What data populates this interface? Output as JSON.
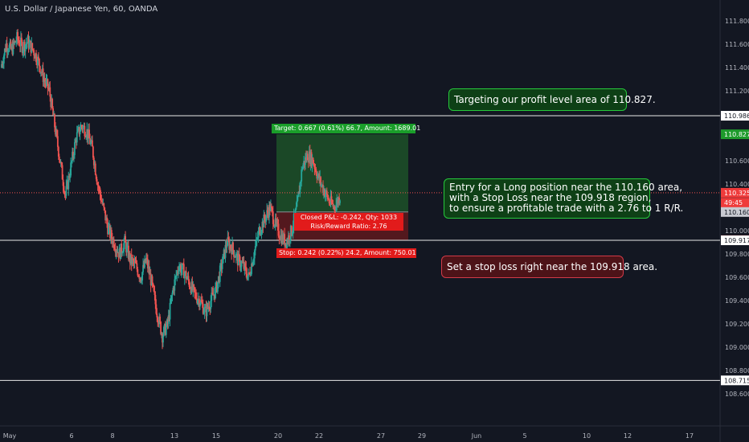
{
  "header": {
    "title": "U.S. Dollar / Japanese Yen, 60, OANDA"
  },
  "annotations": {
    "target_note": "Targeting our profit level area of 110.827.",
    "entry_note": [
      "Entry for a Long position near the 110.160 area,",
      "with a Stop Loss near the 109.918 region,",
      "to ensure a profitable trade with a 2.76 to 1 R/R."
    ],
    "stop_note": "Set a stop loss right near the 109.918 area."
  },
  "position_tool": {
    "target_label": "Target: 0.667 (0.61%) 66.7, Amount: 1689.01",
    "stop_label": "Stop: 0.242 (0.22%) 24.2, Amount: 750.01",
    "pnl_label": "Closed P&L: -0.242, Qty: 1033",
    "rr_label": "Risk/Reward Ratio: 2.76",
    "entry": 110.16,
    "target": 110.827,
    "stop": 109.918
  },
  "chart_data": {
    "type": "candlestick",
    "symbol": "U.S. Dollar / Japanese Yen, 60, OANDA",
    "ylim": [
      108.5,
      111.9
    ],
    "y_ticks": [
      "111.800",
      "111.600",
      "111.400",
      "111.200",
      "110.600",
      "110.400",
      "110.200",
      "110.000",
      "109.800",
      "109.600",
      "109.400",
      "109.200",
      "109.000",
      "108.800",
      "108.600"
    ],
    "x_ticks": [
      "May",
      "6",
      "8",
      "13",
      "15",
      "20",
      "22",
      "27",
      "29",
      "Jun",
      "5",
      "10",
      "12",
      "17"
    ],
    "horizontal_lines": [
      110.986,
      109.917,
      108.715
    ],
    "price_labels": [
      {
        "label": "110.986",
        "value": 110.986,
        "style": "white"
      },
      {
        "label": "110.827",
        "value": 110.827,
        "style": "green"
      },
      {
        "label": "110.325",
        "value": 110.325,
        "style": "red"
      },
      {
        "label": "49:45",
        "value": 110.24,
        "style": "red"
      },
      {
        "label": "110.160",
        "value": 110.16,
        "style": "gray"
      },
      {
        "label": "109.918",
        "value": 109.918,
        "style": "red"
      },
      {
        "label": "109.917",
        "value": 109.917,
        "style": "white"
      },
      {
        "label": "108.715",
        "value": 108.715,
        "style": "white"
      }
    ],
    "current_price": 110.325,
    "colors": {
      "up": "#26a69a",
      "down": "#ef5350",
      "bg": "#131722",
      "profit": "#1f5a2a",
      "loss": "#6a1a1e"
    },
    "close_path": [
      111.4,
      111.6,
      111.55,
      111.65,
      111.58,
      111.62,
      111.55,
      111.45,
      111.3,
      111.2,
      110.9,
      110.6,
      110.3,
      110.55,
      110.8,
      110.9,
      110.85,
      110.7,
      110.4,
      110.2,
      110.0,
      109.9,
      109.8,
      109.9,
      109.75,
      109.7,
      109.6,
      109.75,
      109.55,
      109.3,
      109.1,
      109.2,
      109.5,
      109.7,
      109.65,
      109.55,
      109.45,
      109.4,
      109.3,
      109.4,
      109.5,
      109.7,
      109.9,
      109.85,
      109.75,
      109.7,
      109.6,
      109.8,
      110.0,
      110.1,
      110.2,
      110.05,
      109.95,
      109.9,
      110.0,
      110.2,
      110.55,
      110.65,
      110.6,
      110.45,
      110.35,
      110.25,
      110.2,
      110.3
    ]
  }
}
